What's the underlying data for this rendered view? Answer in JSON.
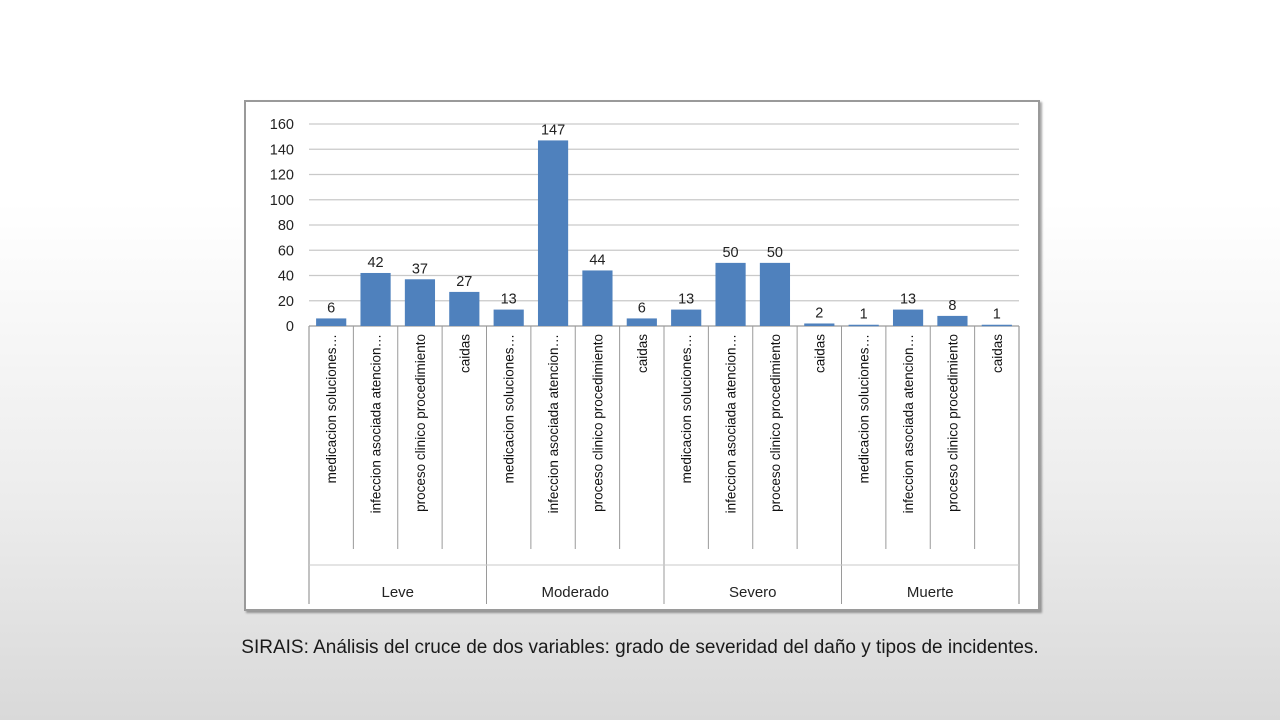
{
  "caption": "SIRAIS: Análisis del cruce de dos variables: grado de severidad del daño y tipos de incidentes.",
  "chart_data": {
    "type": "bar",
    "ylim": [
      0,
      160
    ],
    "yticks": [
      0,
      20,
      40,
      60,
      80,
      100,
      120,
      140,
      160
    ],
    "grid": true,
    "bar_color": "#4f81bd",
    "groups": [
      {
        "name": "Leve",
        "categories": [
          "medicacion soluciones…",
          "infeccion asociada atencion…",
          "proceso clinico procedimiento",
          "caidas"
        ],
        "values": [
          6,
          42,
          37,
          27
        ]
      },
      {
        "name": "Moderado",
        "categories": [
          "medicacion soluciones…",
          "infeccion asociada atencion…",
          "proceso clinico procedimiento",
          "caidas"
        ],
        "values": [
          13,
          147,
          44,
          6
        ]
      },
      {
        "name": "Severo",
        "categories": [
          "medicacion soluciones…",
          "infeccion asociada atencion…",
          "proceso clinico procedimiento",
          "caidas"
        ],
        "values": [
          13,
          50,
          50,
          2
        ]
      },
      {
        "name": "Muerte",
        "categories": [
          "medicacion soluciones…",
          "infeccion asociada atencion…",
          "proceso clinico procedimiento",
          "caidas"
        ],
        "values": [
          1,
          13,
          8,
          1
        ]
      }
    ]
  }
}
